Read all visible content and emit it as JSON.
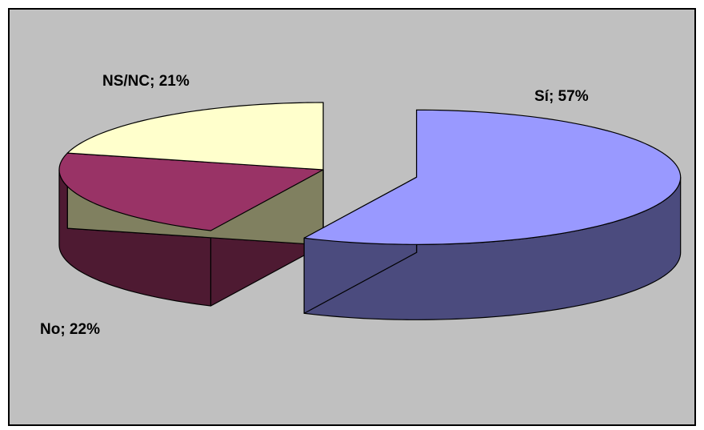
{
  "chart_data": {
    "type": "pie",
    "style": "3d-exploded",
    "categories": [
      "Sí",
      "No",
      "NS/NC"
    ],
    "values": [
      57,
      22,
      21
    ],
    "unit": "%",
    "labels": [
      "Sí; 57%",
      "No; 22%",
      "NS/NC; 21%"
    ],
    "colors": {
      "top": [
        "#9999FF",
        "#993366",
        "#FFFFCC"
      ],
      "side": [
        "#4B4B7E",
        "#4E1A32",
        "#808060"
      ]
    },
    "plot_background": "#C0C0C0",
    "legend": "none",
    "exploded_slice": "Sí"
  }
}
